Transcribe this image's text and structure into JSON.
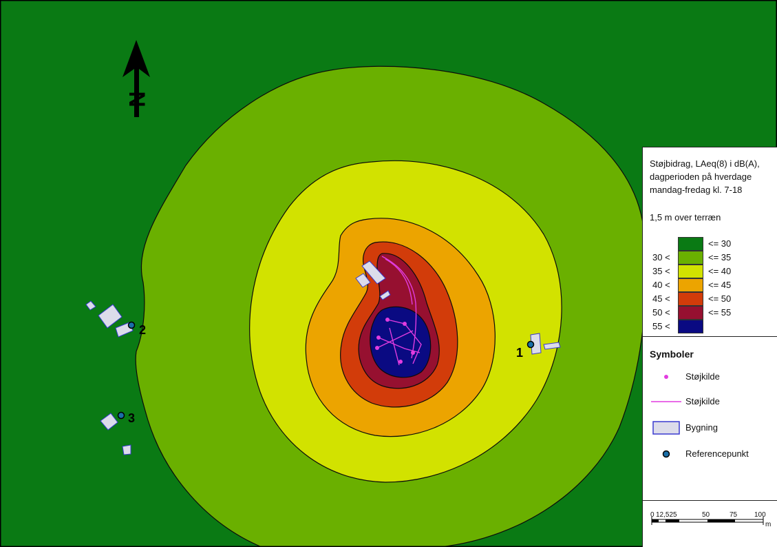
{
  "map": {
    "north_arrow_label": "N",
    "colors": {
      "background": "#0a7a14",
      "outline": "#0b0b0b",
      "building_fill": "#dcdcea",
      "building_stroke": "#3a3ad0",
      "source": "#e23ce0",
      "ref_point": "#1a6fa8"
    },
    "reference_points": [
      {
        "label": "1",
        "name": "reference-point-1"
      },
      {
        "label": "2",
        "name": "reference-point-2"
      },
      {
        "label": "3",
        "name": "reference-point-3"
      }
    ]
  },
  "legend": {
    "title_lines": [
      "Støjbidrag, LAeq(8) i dB(A),",
      "dagperioden på hverdage",
      "mandag-fredag kl. 7-18"
    ],
    "height_note": "1,5 m over terræn",
    "classes": [
      {
        "low": "",
        "high": "<= 30",
        "color": "#0a7a14"
      },
      {
        "low": "30 <",
        "high": "<= 35",
        "color": "#6ab000"
      },
      {
        "low": "35 <",
        "high": "<= 40",
        "color": "#d2e200"
      },
      {
        "low": "40 <",
        "high": "<= 45",
        "color": "#eca400"
      },
      {
        "low": "45 <",
        "high": "<= 50",
        "color": "#d23c0a"
      },
      {
        "low": "50 <",
        "high": "<= 55",
        "color": "#961030"
      },
      {
        "low": "55 <",
        "high": "",
        "color": "#0a0a82"
      }
    ],
    "symbols_title": "Symboler",
    "symbols": [
      {
        "label": "Støjkilde",
        "icon": "point-source-icon"
      },
      {
        "label": "Støjkilde",
        "icon": "line-source-icon"
      },
      {
        "label": "Bygning",
        "icon": "building-icon"
      },
      {
        "label": "Referencepunkt",
        "icon": "reference-point-icon"
      }
    ],
    "scale": {
      "ticks": [
        "0",
        "12,525",
        "50",
        "75",
        "100"
      ],
      "unit": "m"
    }
  }
}
